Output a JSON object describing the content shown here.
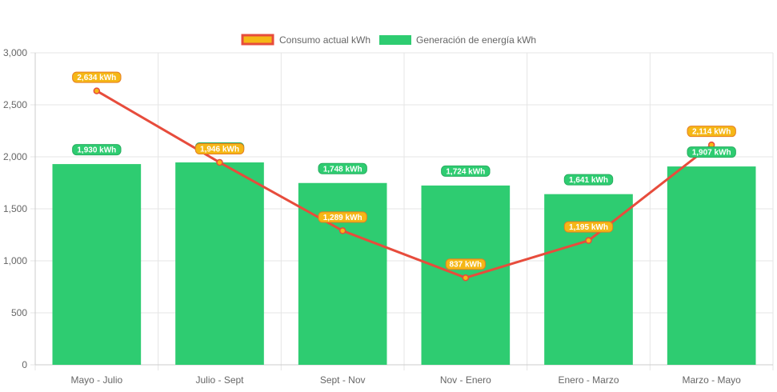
{
  "chart_data": {
    "type": "bar",
    "categories": [
      "Mayo - Julio",
      "Julio - Sept",
      "Sept - Nov",
      "Nov - Enero",
      "Enero - Marzo",
      "Marzo - Mayo"
    ],
    "series": [
      {
        "name": "Consumo actual kWh",
        "type": "line",
        "color": "#e74c3c",
        "marker_color": "#f5b716",
        "values": [
          2634,
          1946,
          1289,
          837,
          1195,
          2114
        ],
        "labels": [
          "2,634 kWh",
          "1,946 kWh",
          "1,289 kWh",
          "837 kWh",
          "1,195 kWh",
          "2,114 kWh"
        ]
      },
      {
        "name": "Generación de energía kWh",
        "type": "bar",
        "color": "#2ecc71",
        "values": [
          1930,
          1946,
          1748,
          1724,
          1641,
          1907
        ],
        "labels": [
          "1,930 kWh",
          "1,946 kWh",
          "1,748 kWh",
          "1,724 kWh",
          "1,641 kWh",
          "1,907 kWh"
        ]
      }
    ],
    "yticks": [
      "0",
      "500",
      "1,000",
      "1,500",
      "2,000",
      "2,500",
      "3,000"
    ],
    "ylim": [
      0,
      3000
    ],
    "grid": true,
    "legend_position": "top-center"
  }
}
